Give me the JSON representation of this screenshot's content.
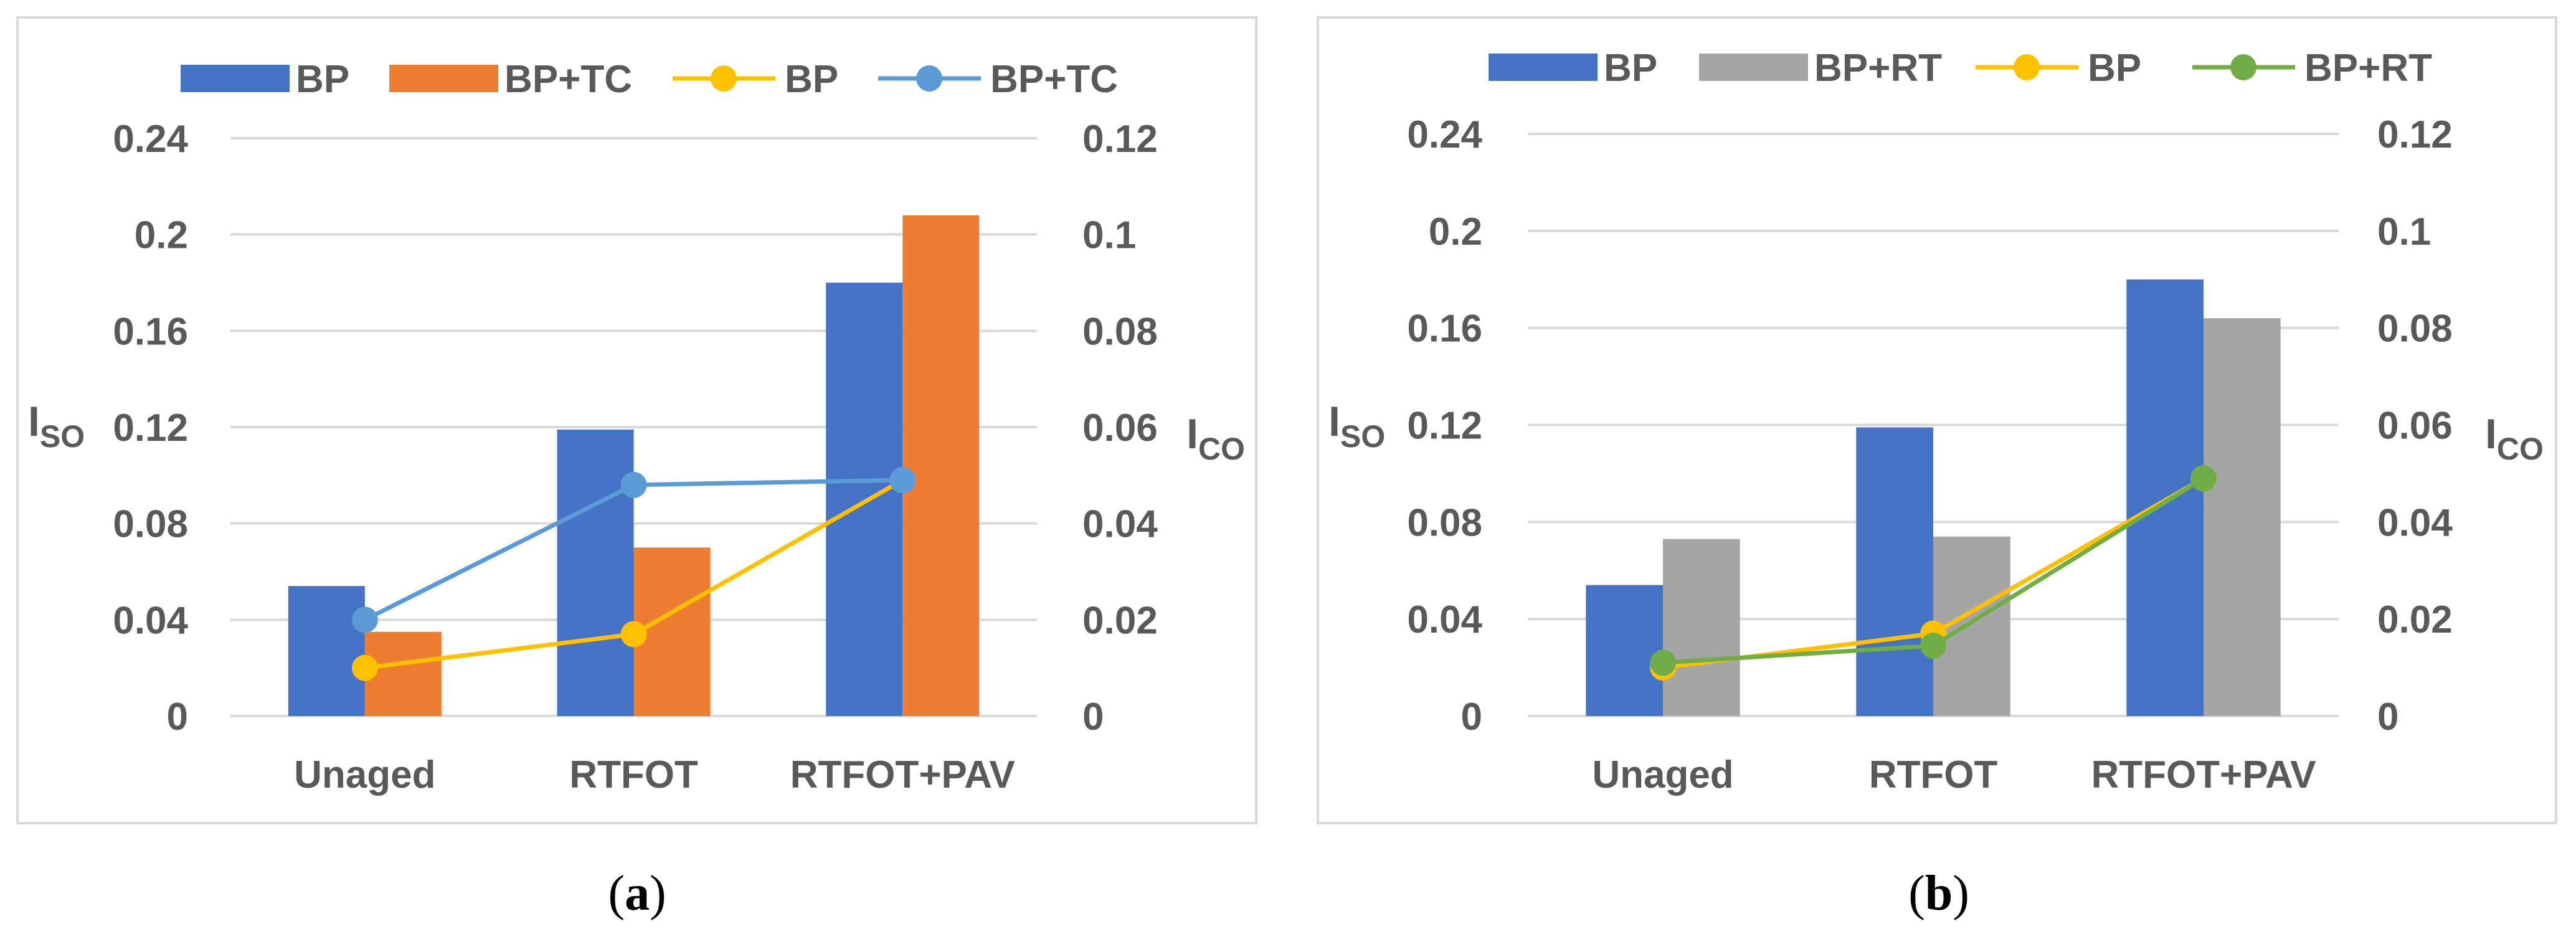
{
  "chart_data": [
    {
      "type": "bar",
      "panel_label": "a",
      "categories": [
        "Unaged",
        "RTFOT",
        "RTFOT+PAV"
      ],
      "bar_series": [
        {
          "name": "BP",
          "values": [
            0.054,
            0.119,
            0.18
          ],
          "color": "#4472c4"
        },
        {
          "name": "BP+TC",
          "values": [
            0.035,
            0.07,
            0.208
          ],
          "color": "#ed7d31"
        }
      ],
      "line_series": [
        {
          "name": "BP",
          "values": [
            0.01,
            0.017,
            0.049
          ],
          "color": "#ffc000"
        },
        {
          "name": "BP+TC",
          "values": [
            0.02,
            0.048,
            0.049
          ],
          "color": "#5b9bd5"
        }
      ],
      "legend": [
        "BP",
        "BP+TC",
        "BP",
        "BP+TC"
      ],
      "ylabel_left": {
        "main": "I",
        "sub": "SO"
      },
      "ylabel_right": {
        "main": "I",
        "sub": "CO"
      },
      "ylim_left": [
        0,
        0.24
      ],
      "ylim_right": [
        0,
        0.12
      ],
      "yticks_left": [
        "0",
        "0.04",
        "0.08",
        "0.12",
        "0.16",
        "0.2",
        "0.24"
      ],
      "yticks_right": [
        "0",
        "0.02",
        "0.04",
        "0.06",
        "0.08",
        "0.1",
        "0.12"
      ],
      "grid": true,
      "legend_position": "top"
    },
    {
      "type": "bar",
      "panel_label": "b",
      "categories": [
        "Unaged",
        "RTFOT",
        "RTFOT+PAV"
      ],
      "bar_series": [
        {
          "name": "BP",
          "values": [
            0.054,
            0.119,
            0.18
          ],
          "color": "#4472c4"
        },
        {
          "name": "BP+RT",
          "values": [
            0.073,
            0.074,
            0.164
          ],
          "color": "#a5a5a5"
        }
      ],
      "line_series": [
        {
          "name": "BP",
          "values": [
            0.01,
            0.017,
            0.049
          ],
          "color": "#ffc000"
        },
        {
          "name": "BP+RT",
          "values": [
            0.011,
            0.0145,
            0.049
          ],
          "color": "#70ad47"
        }
      ],
      "legend": [
        "BP",
        "BP+RT",
        "BP",
        "BP+RT"
      ],
      "ylabel_left": {
        "main": "I",
        "sub": "SO"
      },
      "ylabel_right": {
        "main": "I",
        "sub": "CO"
      },
      "ylim_left": [
        0,
        0.24
      ],
      "ylim_right": [
        0,
        0.12
      ],
      "yticks_left": [
        "0",
        "0.04",
        "0.08",
        "0.12",
        "0.16",
        "0.2",
        "0.24"
      ],
      "yticks_right": [
        "0",
        "0.02",
        "0.04",
        "0.06",
        "0.08",
        "0.1",
        "0.12"
      ],
      "grid": true,
      "legend_position": "top"
    }
  ],
  "captions": {
    "a": {
      "open": "(",
      "letter": "a",
      "close": ")"
    },
    "b": {
      "open": "(",
      "letter": "b",
      "close": ")"
    }
  }
}
